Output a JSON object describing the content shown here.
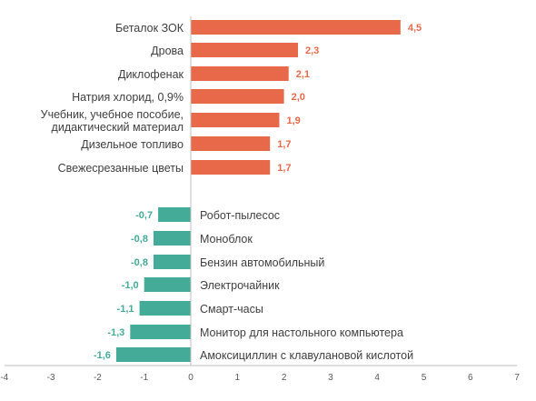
{
  "chart_data": {
    "type": "bar",
    "orientation": "horizontal",
    "title": "",
    "xlabel": "",
    "ylabel": "",
    "xlim": [
      -4,
      7
    ],
    "xticks": [
      "-4",
      "-3",
      "-2",
      "-1",
      "0",
      "1",
      "2",
      "3",
      "4",
      "5",
      "6",
      "7"
    ],
    "grid": false,
    "legend": "none",
    "colors": {
      "positive": "#e8694a",
      "negative": "#45ab99"
    },
    "categories": [
      "Беталок ЗОК",
      "Дрова",
      "Диклофенак",
      "Натрия хлорид, 0,9%",
      [
        "Учебник, учебное пособие,",
        "дидактический материал"
      ],
      "Дизельное топливо",
      "Свежесрезанные цветы",
      "Робот-пылесос",
      "Моноблок",
      "Бензин автомобильный",
      "Электрочайник",
      "Смарт-часы",
      "Монитор для настольного компьютера",
      "Амоксициллин с клавулановой кислотой"
    ],
    "values": [
      4.5,
      2.3,
      2.1,
      2.0,
      1.9,
      1.7,
      1.7,
      -0.7,
      -0.8,
      -0.8,
      -1.0,
      -1.1,
      -1.3,
      -1.6
    ],
    "value_labels": [
      "4,5",
      "2,3",
      "2,1",
      "2,0",
      "1,9",
      "1,7",
      "1,7",
      "-0,7",
      "-0,8",
      "-0,8",
      "-1,0",
      "-1,1",
      "-1,3",
      "-1,6"
    ]
  }
}
